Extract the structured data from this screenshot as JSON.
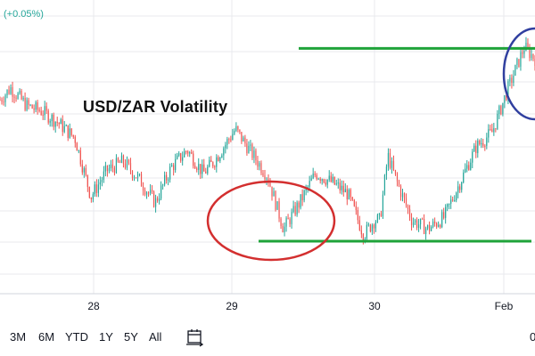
{
  "header": {
    "change": "(+0.05%)"
  },
  "colors": {
    "up": "#26a69a",
    "down": "#ef5350",
    "support_line": "#1fa33a",
    "circle_red": "#d32f2f",
    "circle_blue": "#303f9f",
    "grid": "#e8eaed"
  },
  "toolbar": {
    "ranges": [
      "3M",
      "6M",
      "YTD",
      "1Y",
      "5Y",
      "All"
    ],
    "date_range_icon": "calendar-range-icon",
    "right_edge_text": "0"
  },
  "chart_data": {
    "type": "line",
    "title": "USD/ZAR Volatility",
    "x_tick_labels": [
      "28",
      "29",
      "30",
      "Feb"
    ],
    "grid": true,
    "series": [
      {
        "x": [
          0,
          0.02,
          0.05,
          0.08,
          0.11,
          0.14,
          0.17,
          0.2,
          0.23,
          0.26,
          0.29,
          0.32,
          0.35,
          0.38,
          0.4,
          0.44,
          0.47,
          0.5,
          0.53,
          0.56,
          0.59,
          0.62,
          0.65,
          0.68,
          0.7,
          0.71,
          0.725,
          0.74,
          0.77,
          0.8,
          0.83,
          0.86,
          0.89,
          0.92,
          0.95,
          0.98,
          1.0
        ],
        "y": [
          0.66,
          0.7,
          0.64,
          0.62,
          0.58,
          0.53,
          0.33,
          0.42,
          0.45,
          0.39,
          0.31,
          0.43,
          0.49,
          0.41,
          0.45,
          0.56,
          0.48,
          0.4,
          0.22,
          0.31,
          0.41,
          0.38,
          0.34,
          0.2,
          0.25,
          0.25,
          0.47,
          0.39,
          0.25,
          0.22,
          0.26,
          0.38,
          0.5,
          0.55,
          0.7,
          0.84,
          0.8
        ]
      }
    ],
    "annotations": {
      "resistance_line": {
        "x": [
          0.5,
          0.8
        ],
        "y": 0.92
      },
      "support_line": {
        "x": [
          0.42,
          0.74
        ],
        "y": 0.12
      },
      "red_ellipse": {
        "cx": 0.6,
        "cy": 0.28,
        "rx": 0.13,
        "ry": 0.22
      },
      "blue_ellipse": {
        "cx": 0.98,
        "cy": 0.88,
        "rx": 0.06,
        "ry": 0.2
      }
    }
  }
}
